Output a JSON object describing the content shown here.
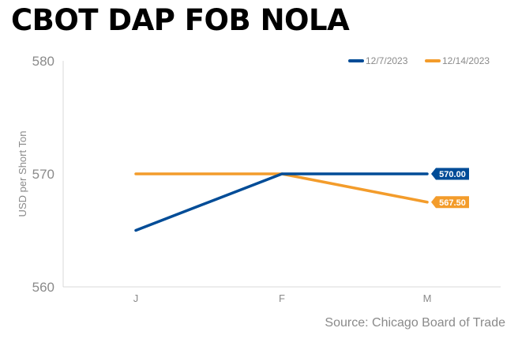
{
  "title": "CBOT DAP FOB NOLA",
  "source": "Source: Chicago Board of Trade",
  "chart_data": {
    "type": "line",
    "title": "CBOT DAP FOB NOLA",
    "ylabel": "USD per Short Ton",
    "xlabel": "",
    "categories": [
      "J",
      "F",
      "M"
    ],
    "y_ticks": [
      "580",
      "570",
      "560"
    ],
    "ylim": [
      560,
      580
    ],
    "grid": false,
    "legend_position": "top-right",
    "series": [
      {
        "name": "12/7/2023",
        "color": "#004c97",
        "values": [
          565,
          570,
          570
        ],
        "end_label": "570.00"
      },
      {
        "name": "12/14/2023",
        "color": "#f39c2b",
        "values": [
          570,
          570,
          567.5
        ],
        "end_label": "567.50"
      }
    ]
  }
}
